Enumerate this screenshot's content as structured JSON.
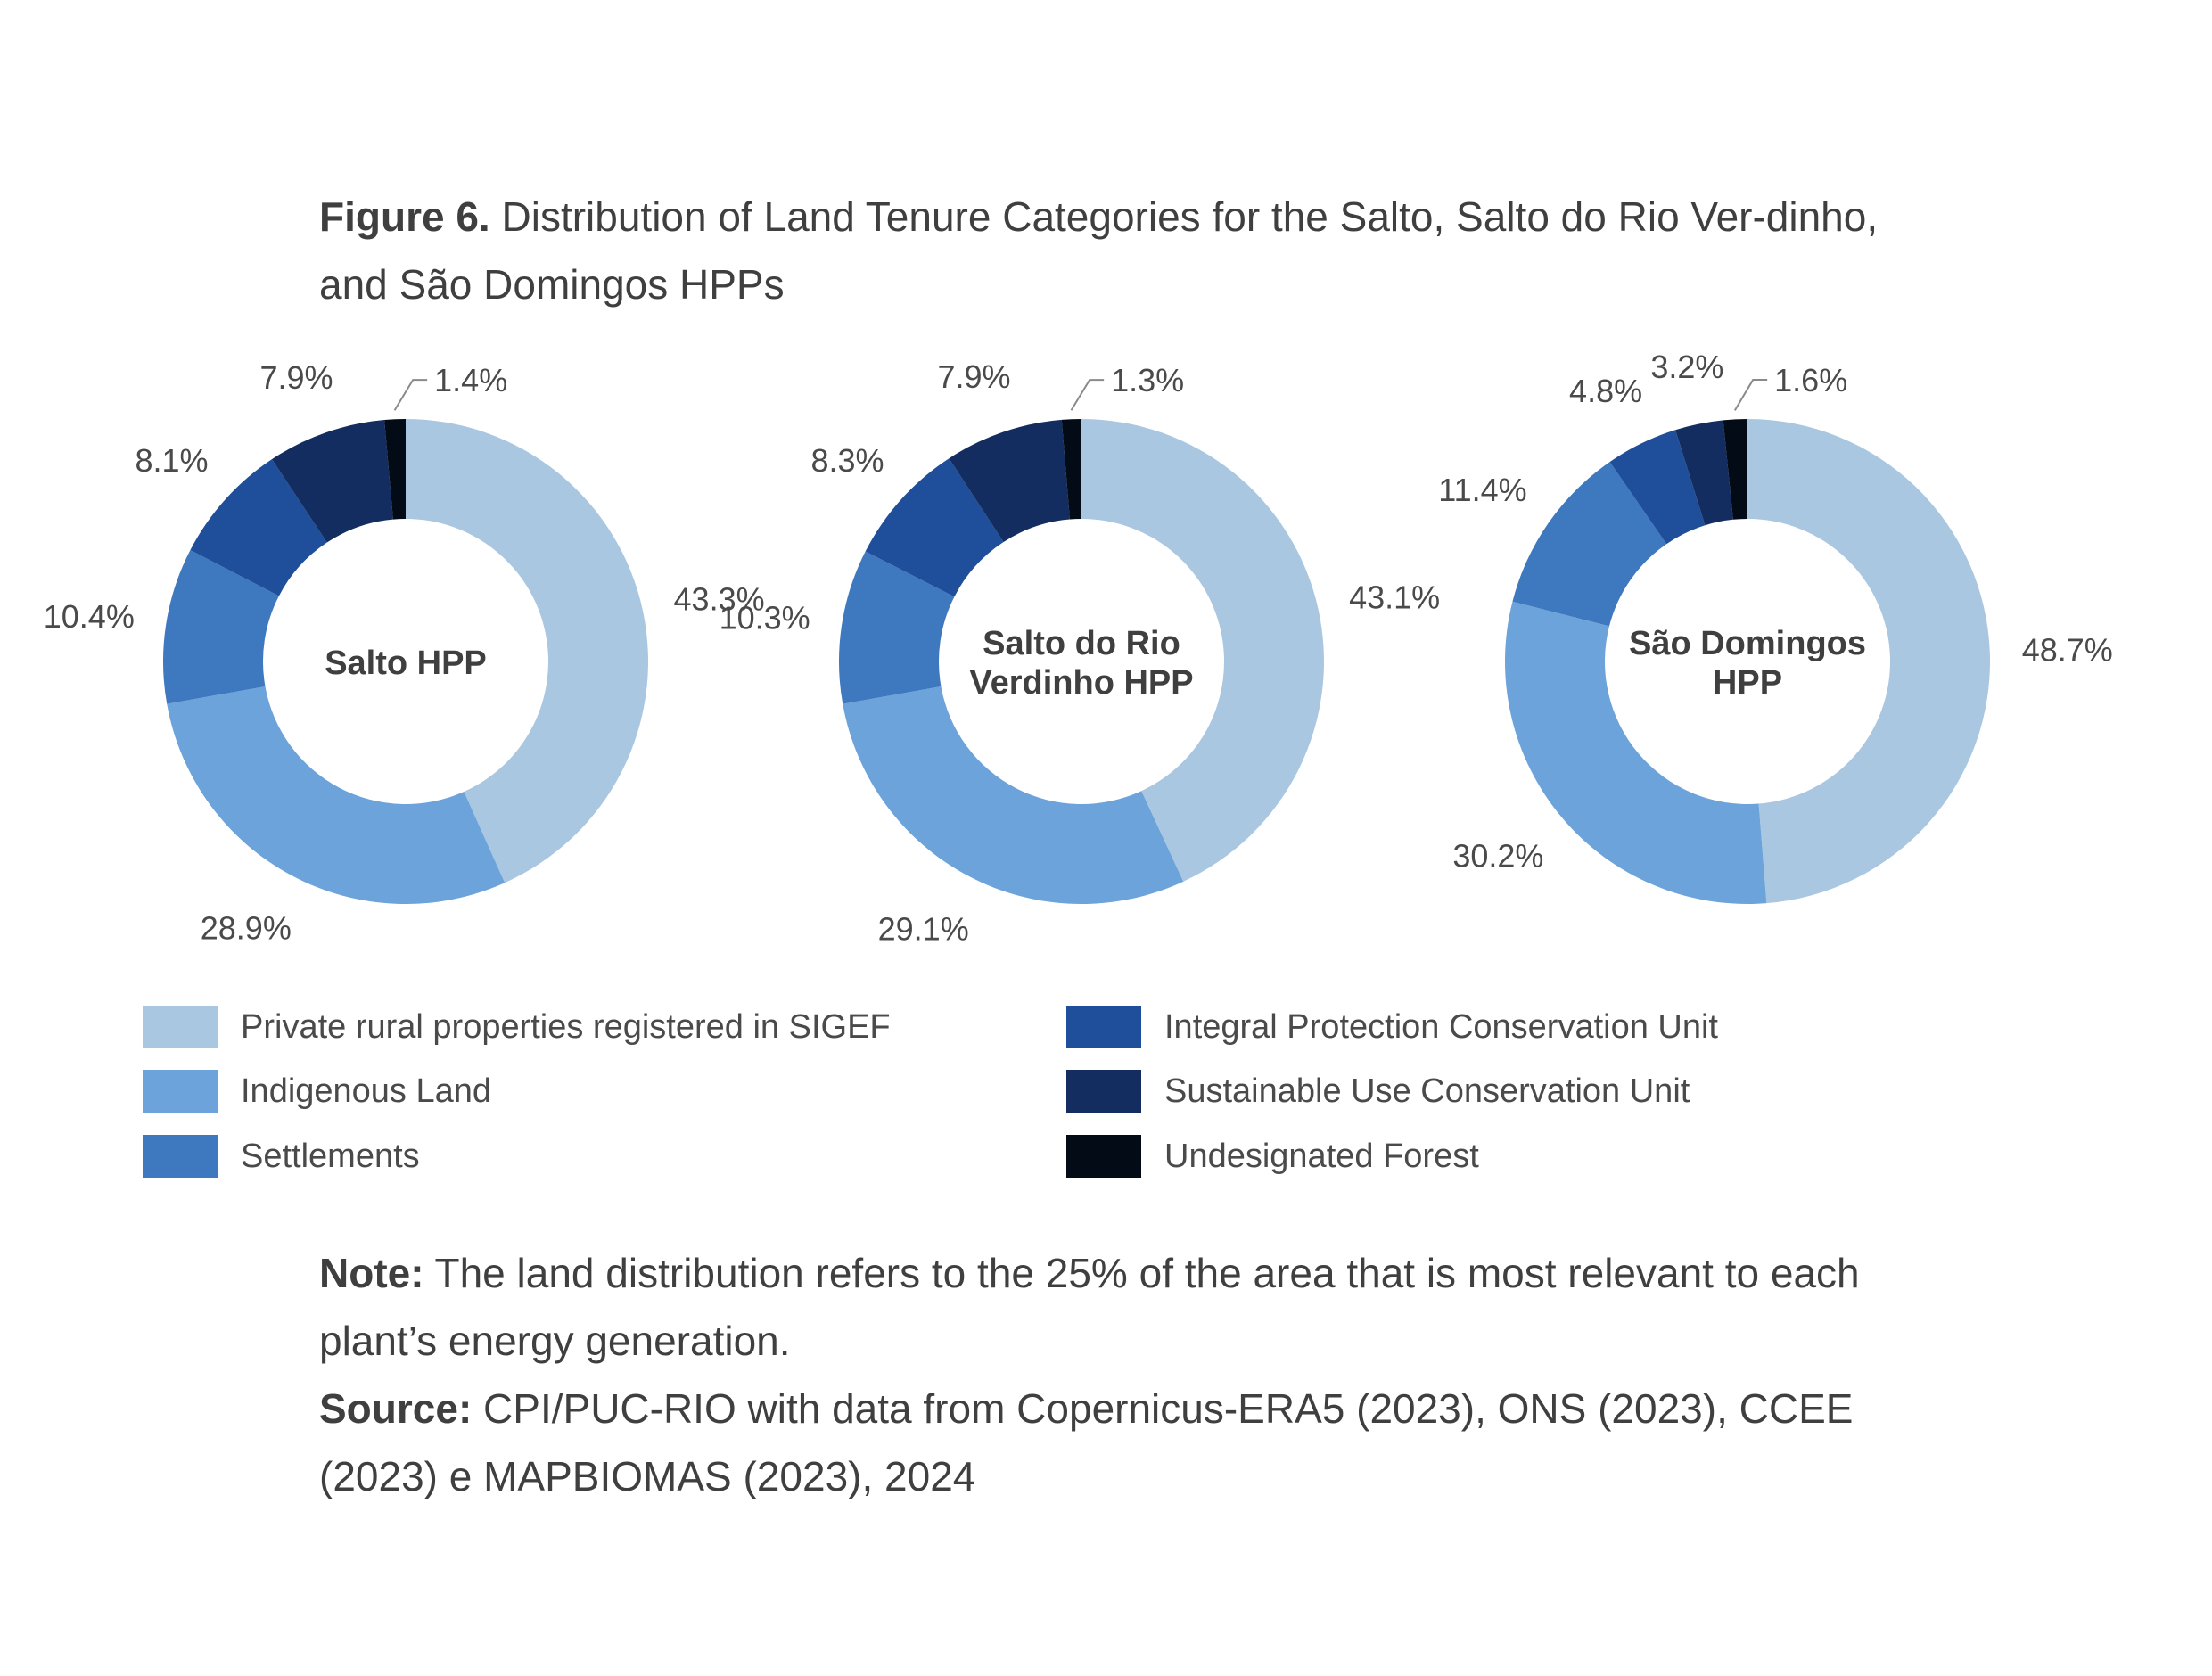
{
  "caption": {
    "label": "Figure 6.",
    "text": "Distribution of Land Tenure Categories for the Salto, Salto do Rio Ver-dinho, and São Domingos HPPs"
  },
  "colors": [
    "#aac7e1",
    "#6ba3da",
    "#3e78bf",
    "#1f4f9a",
    "#132d60",
    "#030b16"
  ],
  "chart_data": [
    {
      "type": "pie",
      "style": "donut",
      "center_label": [
        "Salto HPP"
      ],
      "categories": [
        "Private rural properties registered in SIGEF",
        "Indigenous Land",
        "Settlements",
        "Integral Protection Conservation Unit",
        "Sustainable Use Conservation Unit",
        "Undesignated Forest"
      ],
      "values": [
        43.3,
        28.9,
        10.4,
        8.1,
        7.9,
        1.4
      ],
      "labels": [
        "43.3%",
        "28.9%",
        "10.4%",
        "8.1%",
        "7.9%",
        "1.4%"
      ]
    },
    {
      "type": "pie",
      "style": "donut",
      "center_label": [
        "Salto do Rio",
        "Verdinho HPP"
      ],
      "categories": [
        "Private rural properties registered in SIGEF",
        "Indigenous Land",
        "Settlements",
        "Integral Protection Conservation Unit",
        "Sustainable Use Conservation Unit",
        "Undesignated Forest"
      ],
      "values": [
        43.1,
        29.1,
        10.3,
        8.3,
        7.9,
        1.3
      ],
      "labels": [
        "43.1%",
        "29.1%",
        "10.3%",
        "8.3%",
        "7.9%",
        "1.3%"
      ]
    },
    {
      "type": "pie",
      "style": "donut",
      "center_label": [
        "São Domingos",
        "HPP"
      ],
      "categories": [
        "Private rural properties registered in SIGEF",
        "Indigenous Land",
        "Settlements",
        "Integral Protection Conservation Unit",
        "Sustainable Use Conservation Unit",
        "Undesignated Forest"
      ],
      "values": [
        48.7,
        30.2,
        11.4,
        4.8,
        3.2,
        1.6
      ],
      "labels": [
        "48.7%",
        "30.2%",
        "11.4%",
        "4.8%",
        "3.2%",
        "1.6%"
      ]
    }
  ],
  "legend": [
    "Private rural properties registered in SIGEF",
    "Indigenous Land",
    "Settlements",
    "Integral Protection Conservation Unit",
    "Sustainable Use Conservation Unit",
    "Undesignated Forest"
  ],
  "notes": {
    "note_label": "Note:",
    "note_text": "The land distribution refers to the 25% of the area that is most relevant to each plant’s energy generation.",
    "source_label": "Source:",
    "source_text": "CPI/PUC-RIO with data from Copernicus-ERA5 (2023), ONS (2023), CCEE (2023) e MAPBIOMAS (2023), 2024"
  }
}
